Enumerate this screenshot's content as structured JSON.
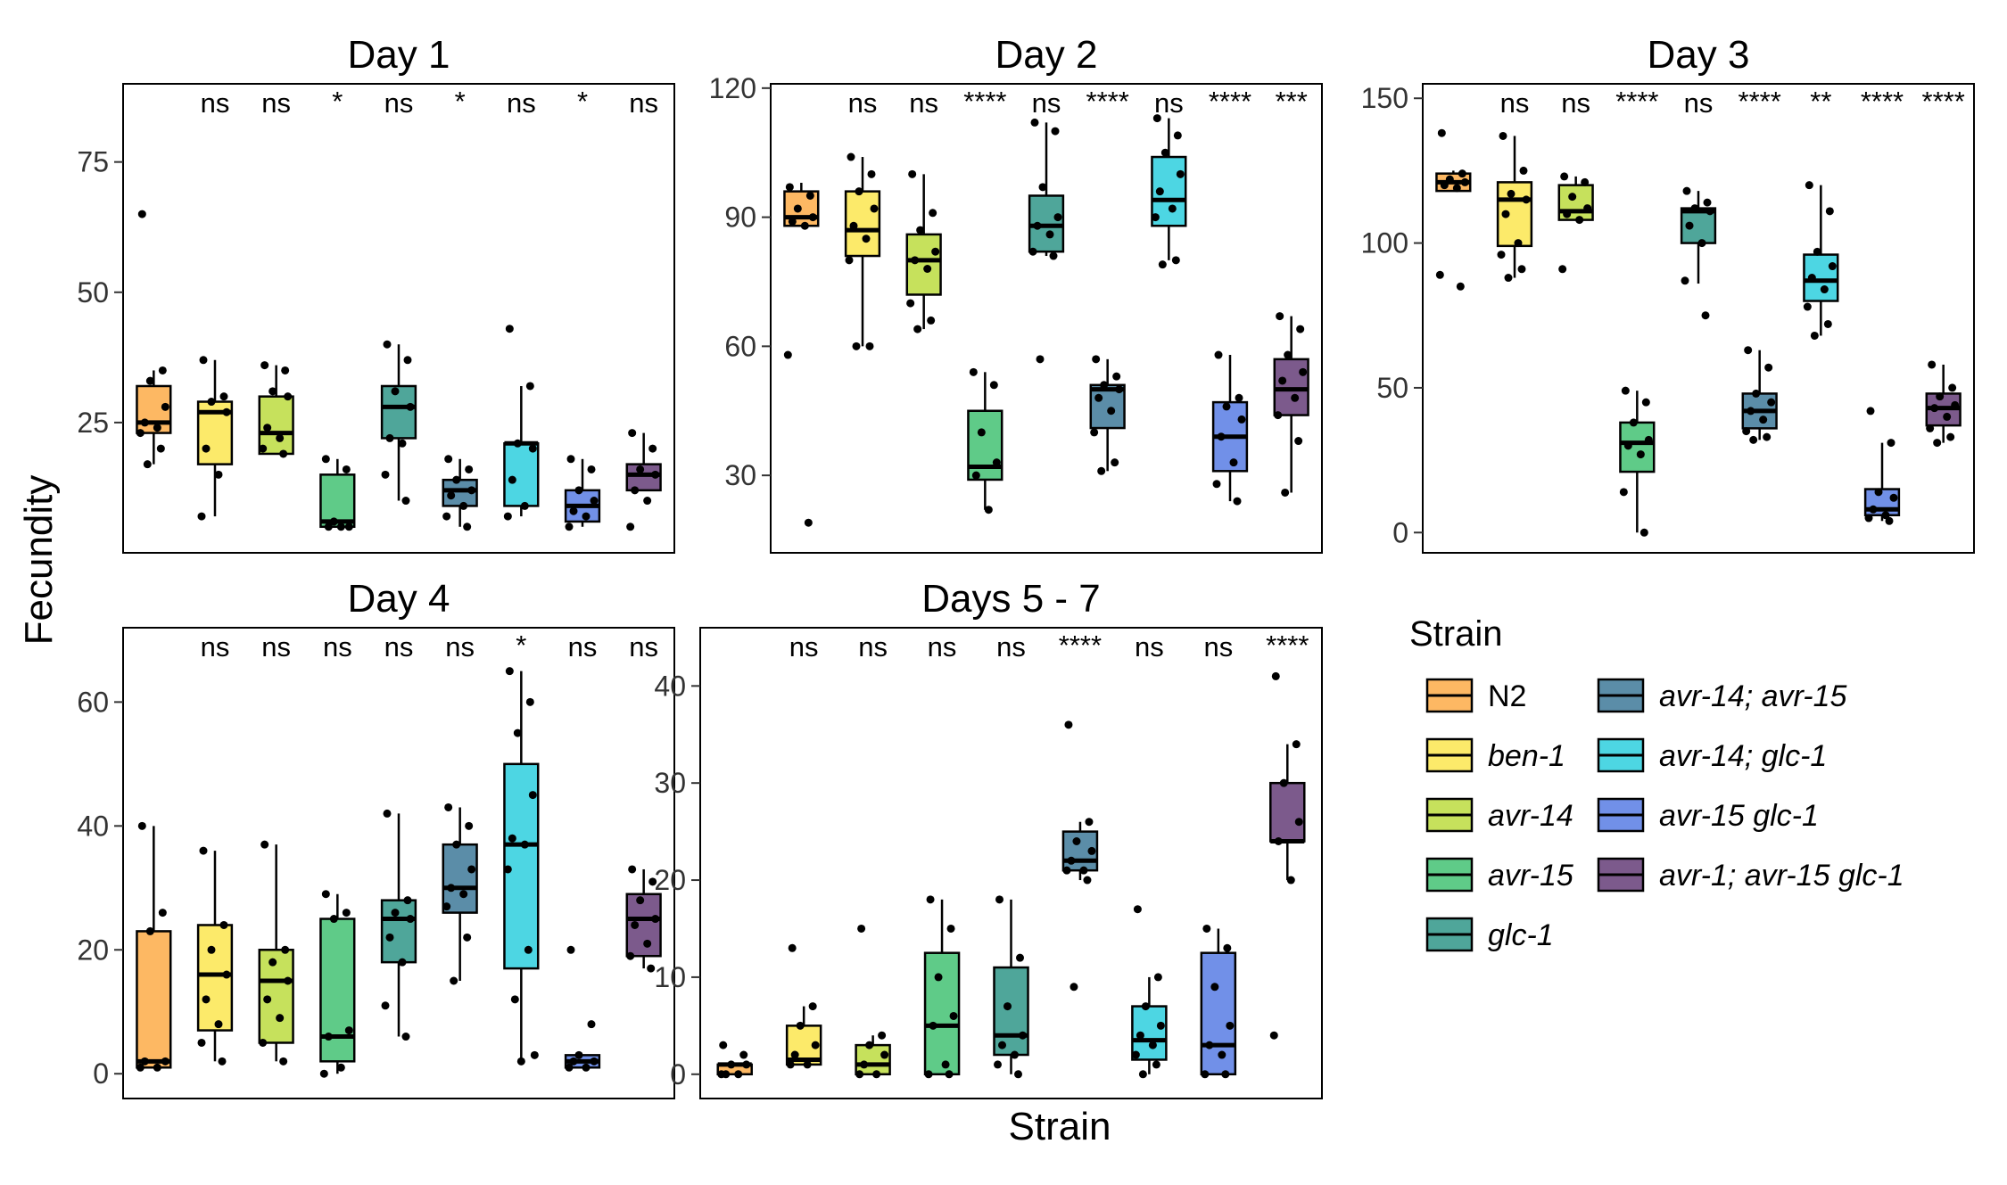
{
  "figure": {
    "ylabel": "Fecundity",
    "xlabel": "Strain"
  },
  "legend": {
    "title": "Strain",
    "entries": [
      {
        "name": "N2",
        "color": "#FDB863",
        "italic": false
      },
      {
        "name": "ben-1",
        "color": "#FCEA6A",
        "italic": true
      },
      {
        "name": "avr-14",
        "color": "#C6E15C",
        "italic": true
      },
      {
        "name": "avr-15",
        "color": "#5FCB88",
        "italic": true
      },
      {
        "name": "glc-1",
        "color": "#4FA69A",
        "italic": true
      },
      {
        "name": "avr-14; avr-15",
        "color": "#5B8DA8",
        "italic": true
      },
      {
        "name": "avr-14; glc-1",
        "color": "#4DD6E3",
        "italic": true
      },
      {
        "name": "avr-15 glc-1",
        "color": "#7190E8",
        "italic": true
      },
      {
        "name": "avr-1; avr-15 glc-1",
        "color": "#7C5A8C",
        "italic": true
      }
    ]
  },
  "chart_data": [
    {
      "type": "box",
      "title": "Day 1",
      "ylim": [
        0,
        90
      ],
      "yticks": [
        25,
        50,
        75
      ],
      "ytick_labels": [
        "25",
        "50",
        "75"
      ],
      "significance": [
        "",
        "ns",
        "ns",
        "*",
        "ns",
        "*",
        "ns",
        "*",
        "ns"
      ],
      "boxes": [
        {
          "q1": 23,
          "median": 25,
          "q3": 32,
          "wlow": 17,
          "whigh": 35
        },
        {
          "q1": 17,
          "median": 27,
          "q3": 29,
          "wlow": 7,
          "whigh": 37
        },
        {
          "q1": 19,
          "median": 23,
          "q3": 30,
          "wlow": 19,
          "whigh": 36
        },
        {
          "q1": 5,
          "median": 6,
          "q3": 15,
          "wlow": 5,
          "whigh": 18
        },
        {
          "q1": 22,
          "median": 28,
          "q3": 32,
          "wlow": 10,
          "whigh": 40
        },
        {
          "q1": 9,
          "median": 12,
          "q3": 14,
          "wlow": 5,
          "whigh": 18
        },
        {
          "q1": 9,
          "median": 21,
          "q3": 21,
          "wlow": 7,
          "whigh": 32
        },
        {
          "q1": 6,
          "median": 9,
          "q3": 12,
          "wlow": 5,
          "whigh": 18
        },
        {
          "q1": 12,
          "median": 15,
          "q3": 17,
          "wlow": 12,
          "whigh": 23
        }
      ],
      "points": [
        [
          65,
          35,
          33,
          28,
          25,
          24,
          23,
          20,
          17
        ],
        [
          37,
          30,
          29,
          27,
          20,
          15,
          7
        ],
        [
          36,
          35,
          31,
          30,
          24,
          22,
          20,
          19
        ],
        [
          18,
          16,
          6,
          5,
          5,
          5
        ],
        [
          40,
          37,
          31,
          28,
          22,
          21,
          15,
          10
        ],
        [
          18,
          16,
          14,
          12,
          11,
          9,
          7,
          5
        ],
        [
          43,
          32,
          21,
          20,
          14,
          9,
          7
        ],
        [
          18,
          16,
          12,
          10,
          8,
          7,
          5
        ],
        [
          23,
          20,
          16,
          15,
          12,
          10,
          5
        ]
      ]
    },
    {
      "type": "box",
      "title": "Day 2",
      "ylim": [
        12,
        121
      ],
      "yticks": [
        30,
        60,
        90,
        120
      ],
      "ytick_labels": [
        "30",
        "60",
        "90",
        "120"
      ],
      "significance": [
        "",
        "ns",
        "ns",
        "****",
        "ns",
        "****",
        "ns",
        "****",
        "***"
      ],
      "boxes": [
        {
          "q1": 88,
          "median": 90,
          "q3": 96,
          "wlow": 88,
          "whigh": 98
        },
        {
          "q1": 81,
          "median": 87,
          "q3": 96,
          "wlow": 60,
          "whigh": 104
        },
        {
          "q1": 72,
          "median": 80,
          "q3": 86,
          "wlow": 64,
          "whigh": 100
        },
        {
          "q1": 29,
          "median": 32,
          "q3": 45,
          "wlow": 22,
          "whigh": 54
        },
        {
          "q1": 82,
          "median": 88,
          "q3": 95,
          "wlow": 81,
          "whigh": 112
        },
        {
          "q1": 41,
          "median": 50,
          "q3": 51,
          "wlow": 31,
          "whigh": 57
        },
        {
          "q1": 88,
          "median": 94,
          "q3": 104,
          "wlow": 80,
          "whigh": 113
        },
        {
          "q1": 31,
          "median": 39,
          "q3": 47,
          "wlow": 24,
          "whigh": 58
        },
        {
          "q1": 44,
          "median": 50,
          "q3": 57,
          "wlow": 26,
          "whigh": 67
        }
      ],
      "points": [
        [
          97,
          95,
          92,
          90,
          89,
          88,
          58,
          19
        ],
        [
          104,
          100,
          96,
          92,
          88,
          85,
          80,
          60,
          60
        ],
        [
          100,
          91,
          87,
          82,
          80,
          78,
          70,
          66,
          64
        ],
        [
          54,
          51,
          40,
          33,
          30,
          22
        ],
        [
          112,
          110,
          97,
          90,
          88,
          86,
          82,
          81,
          57
        ],
        [
          57,
          53,
          51,
          50,
          48,
          45,
          40,
          33,
          31
        ],
        [
          113,
          109,
          105,
          100,
          96,
          92,
          90,
          80,
          79
        ],
        [
          58,
          48,
          46,
          43,
          39,
          33,
          28,
          24
        ],
        [
          67,
          64,
          58,
          54,
          52,
          48,
          44,
          38,
          26
        ]
      ]
    },
    {
      "type": "box",
      "title": "Day 3",
      "ylim": [
        -7,
        155
      ],
      "yticks": [
        0,
        50,
        100,
        150
      ],
      "ytick_labels": [
        "0",
        "50",
        "100",
        "150"
      ],
      "significance": [
        "",
        "ns",
        "ns",
        "****",
        "ns",
        "****",
        "**",
        "****",
        "****"
      ],
      "boxes": [
        {
          "q1": 118,
          "median": 121,
          "q3": 124,
          "wlow": 118,
          "whigh": 125
        },
        {
          "q1": 99,
          "median": 115,
          "q3": 121,
          "wlow": 88,
          "whigh": 137
        },
        {
          "q1": 108,
          "median": 111,
          "q3": 120,
          "wlow": 108,
          "whigh": 123
        },
        {
          "q1": 21,
          "median": 31,
          "q3": 38,
          "wlow": 0,
          "whigh": 49
        },
        {
          "q1": 100,
          "median": 111,
          "q3": 112,
          "wlow": 86,
          "whigh": 118
        },
        {
          "q1": 36,
          "median": 42,
          "q3": 48,
          "wlow": 32,
          "whigh": 63
        },
        {
          "q1": 80,
          "median": 87,
          "q3": 96,
          "wlow": 68,
          "whigh": 120
        },
        {
          "q1": 6,
          "median": 8,
          "q3": 15,
          "wlow": 4,
          "whigh": 31
        },
        {
          "q1": 37,
          "median": 43,
          "q3": 48,
          "wlow": 31,
          "whigh": 58
        }
      ],
      "points": [
        [
          138,
          124,
          122,
          121,
          120,
          119,
          89,
          85
        ],
        [
          137,
          125,
          117,
          115,
          110,
          100,
          96,
          91,
          88
        ],
        [
          123,
          121,
          116,
          112,
          110,
          108,
          91
        ],
        [
          49,
          45,
          38,
          32,
          30,
          27,
          14,
          0
        ],
        [
          118,
          114,
          112,
          111,
          106,
          100,
          87,
          75
        ],
        [
          63,
          57,
          48,
          45,
          42,
          39,
          35,
          33,
          32
        ],
        [
          120,
          111,
          97,
          92,
          88,
          84,
          78,
          72,
          68
        ],
        [
          42,
          31,
          14,
          12,
          8,
          6,
          5,
          4
        ],
        [
          58,
          50,
          47,
          44,
          43,
          40,
          36,
          33,
          31
        ]
      ]
    },
    {
      "type": "box",
      "title": "Day 4",
      "ylim": [
        -4,
        72
      ],
      "yticks": [
        0,
        20,
        40,
        60
      ],
      "ytick_labels": [
        "0",
        "20",
        "40",
        "60"
      ],
      "significance": [
        "",
        "ns",
        "ns",
        "ns",
        "ns",
        "ns",
        "*",
        "ns",
        "ns"
      ],
      "boxes": [
        {
          "q1": 1,
          "median": 2,
          "q3": 23,
          "wlow": 1,
          "whigh": 40
        },
        {
          "q1": 7,
          "median": 16,
          "q3": 24,
          "wlow": 2,
          "whigh": 36
        },
        {
          "q1": 5,
          "median": 15,
          "q3": 20,
          "wlow": 2,
          "whigh": 37
        },
        {
          "q1": 2,
          "median": 6,
          "q3": 25,
          "wlow": 0,
          "whigh": 29
        },
        {
          "q1": 18,
          "median": 25,
          "q3": 28,
          "wlow": 6,
          "whigh": 42
        },
        {
          "q1": 26,
          "median": 30,
          "q3": 37,
          "wlow": 15,
          "whigh": 43
        },
        {
          "q1": 17,
          "median": 37,
          "q3": 50,
          "wlow": 2,
          "whigh": 65
        },
        {
          "q1": 1,
          "median": 2,
          "q3": 3,
          "wlow": 1,
          "whigh": 3
        },
        {
          "q1": 19,
          "median": 25,
          "q3": 29,
          "wlow": 17,
          "whigh": 33
        }
      ],
      "points": [
        [
          40,
          26,
          23,
          2,
          2,
          1,
          1
        ],
        [
          36,
          24,
          20,
          16,
          12,
          8,
          5,
          2
        ],
        [
          37,
          20,
          18,
          15,
          12,
          9,
          5,
          2
        ],
        [
          29,
          26,
          25,
          7,
          6,
          1,
          0
        ],
        [
          42,
          28,
          26,
          25,
          22,
          18,
          11,
          6
        ],
        [
          43,
          40,
          37,
          33,
          30,
          29,
          27,
          22,
          15
        ],
        [
          65,
          60,
          55,
          45,
          38,
          37,
          33,
          20,
          12,
          3,
          2
        ],
        [
          20,
          8,
          3,
          2,
          2,
          1,
          1
        ],
        [
          33,
          31,
          28,
          25,
          24,
          21,
          19,
          17
        ]
      ]
    },
    {
      "type": "box",
      "title": "Days 5 - 7",
      "ylim": [
        -2.5,
        46
      ],
      "yticks": [
        0,
        10,
        20,
        30,
        40
      ],
      "ytick_labels": [
        "0",
        "10",
        "20",
        "30",
        "40"
      ],
      "significance": [
        "",
        "ns",
        "ns",
        "ns",
        "ns",
        "****",
        "ns",
        "ns",
        "****"
      ],
      "boxes": [
        {
          "q1": 0,
          "median": 1,
          "q3": 1,
          "wlow": 0,
          "whigh": 1
        },
        {
          "q1": 1,
          "median": 1.5,
          "q3": 5,
          "wlow": 1,
          "whigh": 7
        },
        {
          "q1": 0,
          "median": 1,
          "q3": 3,
          "wlow": 0,
          "whigh": 4
        },
        {
          "q1": 0,
          "median": 5,
          "q3": 12.5,
          "wlow": 0,
          "whigh": 18
        },
        {
          "q1": 2,
          "median": 4,
          "q3": 11,
          "wlow": 0,
          "whigh": 18
        },
        {
          "q1": 21,
          "median": 22,
          "q3": 25,
          "wlow": 20,
          "whigh": 26
        },
        {
          "q1": 1.5,
          "median": 3.5,
          "q3": 7,
          "wlow": 0,
          "whigh": 10
        },
        {
          "q1": 0,
          "median": 3,
          "q3": 12.5,
          "wlow": 0,
          "whigh": 15
        },
        {
          "q1": 24,
          "median": 24,
          "q3": 30,
          "wlow": 20,
          "whigh": 34
        }
      ],
      "points": [
        [
          3,
          2,
          1,
          1,
          0,
          0,
          0
        ],
        [
          13,
          7,
          5,
          3,
          2,
          1,
          1
        ],
        [
          15,
          4,
          3,
          2,
          1,
          0,
          0
        ],
        [
          18,
          15,
          10,
          6,
          5,
          1,
          0,
          0
        ],
        [
          18,
          12,
          7,
          4,
          3,
          2,
          1,
          0
        ],
        [
          36,
          26,
          24,
          23,
          22,
          21,
          21,
          20,
          9
        ],
        [
          17,
          10,
          7,
          5,
          4,
          3,
          2,
          1,
          0
        ],
        [
          15,
          13,
          9,
          5,
          3,
          2,
          0,
          0
        ],
        [
          41,
          34,
          30,
          26,
          24,
          20,
          4
        ]
      ]
    }
  ]
}
